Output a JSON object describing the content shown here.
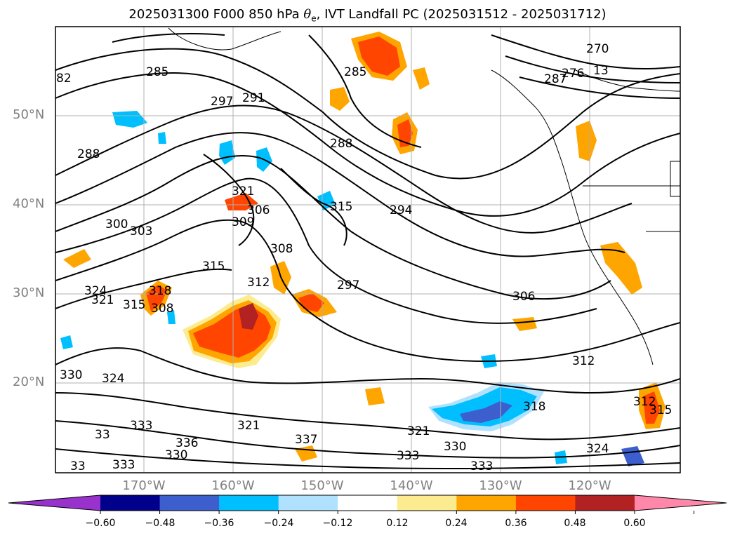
{
  "title": {
    "prefix": "2025031300 F000 850 hPa ",
    "theta": "θ",
    "theta_sub": "e",
    "suffix": ", IVT Landfall PC (2025031512 - 2025031712)"
  },
  "map": {
    "lat_labels": [
      "50°N",
      "40°N",
      "30°N",
      "20°N"
    ],
    "lon_labels": [
      "170°W",
      "160°W",
      "150°W",
      "140°W",
      "130°W",
      "120°W"
    ],
    "contour_labels": [
      "82",
      "285",
      "291",
      "297",
      "288",
      "285",
      "288",
      "270",
      "276",
      "13",
      "287",
      "321",
      "306",
      "309",
      "315",
      "294",
      "300",
      "303",
      "315",
      "308",
      "312",
      "297",
      "306",
      "324",
      "321",
      "315",
      "318",
      "308",
      "312",
      "318",
      "324",
      "330",
      "33",
      "321",
      "337",
      "333",
      "336",
      "330",
      "333",
      "321",
      "330",
      "333",
      "333",
      "324",
      "312",
      "315",
      "33"
    ],
    "contour_color": "#000000",
    "coastline_color": "#000000",
    "grid_color": "#b0b0b0"
  },
  "colorbar": {
    "colors": [
      "#9932cc",
      "#00008b",
      "#3c5fcd",
      "#00bfff",
      "#b0e2ff",
      "#ffffff",
      "#fdeb8f",
      "#ffa500",
      "#ff4500",
      "#b22222",
      "#ff88aa"
    ],
    "tick_labels": [
      "−0.60",
      "−0.48",
      "−0.36",
      "−0.24",
      "−0.12",
      "0.12",
      "0.24",
      "0.36",
      "0.48",
      "0.60"
    ],
    "tick_values": [
      -0.6,
      -0.48,
      -0.36,
      -0.24,
      -0.12,
      0.12,
      0.24,
      0.36,
      0.48,
      0.6
    ]
  }
}
